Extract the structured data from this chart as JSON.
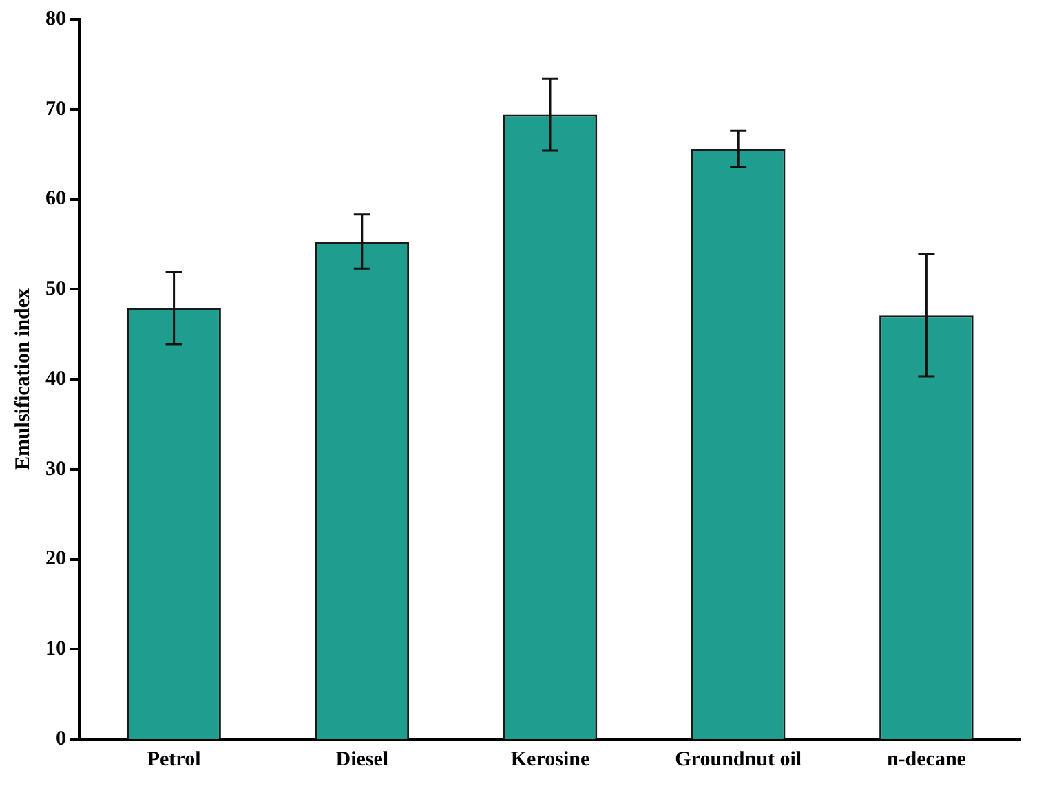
{
  "chart_data": {
    "type": "bar",
    "ylabel": "Emulsification index",
    "categories": [
      "Petrol",
      "Diesel",
      "Kerosine",
      "Groundnut oil",
      "n-decane"
    ],
    "values": [
      47.9,
      55.3,
      69.4,
      65.6,
      47.1
    ],
    "errors": [
      4,
      3,
      4,
      2,
      6.8
    ],
    "color": "#1f9e90",
    "ylim": [
      0,
      80
    ],
    "yticks": [
      0,
      10,
      20,
      30,
      40,
      50,
      60,
      70,
      80
    ],
    "grid": false,
    "legend": false
  }
}
